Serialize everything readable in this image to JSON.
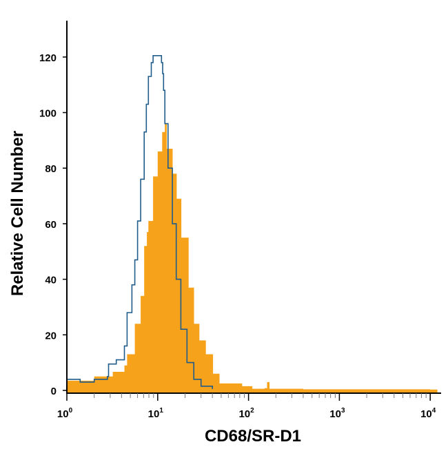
{
  "chart_data": {
    "type": "area",
    "title": "",
    "xlabel": "CD68/SR-D1",
    "ylabel": "Relative Cell Number",
    "x_scale": "log",
    "xlim": [
      1,
      13000
    ],
    "ylim": [
      0,
      133
    ],
    "grid": false,
    "x_ticks": [
      {
        "base": "10",
        "exp": "0",
        "value": 1
      },
      {
        "base": "10",
        "exp": "1",
        "value": 10
      },
      {
        "base": "10",
        "exp": "2",
        "value": 100
      },
      {
        "base": "10",
        "exp": "3",
        "value": 1000
      },
      {
        "base": "10",
        "exp": "4",
        "value": 10000
      }
    ],
    "y_ticks": [
      "0",
      "20",
      "40",
      "60",
      "80",
      "100",
      "120"
    ],
    "series": [
      {
        "style": "outline",
        "color": "#1F5C8A",
        "points": [
          [
            1,
            4
          ],
          [
            1.4,
            3
          ],
          [
            2,
            4
          ],
          [
            2.8,
            5
          ],
          [
            2.88,
            9.5
          ],
          [
            3.5,
            11
          ],
          [
            4.3,
            16
          ],
          [
            4.6,
            28
          ],
          [
            5.2,
            38
          ],
          [
            5.6,
            47
          ],
          [
            6.0,
            61
          ],
          [
            6.5,
            76
          ],
          [
            7.1,
            93
          ],
          [
            7.5,
            103
          ],
          [
            7.9,
            113
          ],
          [
            8.5,
            118
          ],
          [
            8.9,
            120.5
          ],
          [
            10,
            120.5
          ],
          [
            11,
            118
          ],
          [
            11.35,
            114
          ],
          [
            11.6,
            108
          ],
          [
            12,
            96
          ],
          [
            13,
            80
          ],
          [
            14.5,
            60
          ],
          [
            16,
            40
          ],
          [
            18,
            22
          ],
          [
            21,
            10
          ],
          [
            25,
            4
          ],
          [
            30,
            1.5
          ],
          [
            40,
            0.5
          ]
        ]
      },
      {
        "style": "filled",
        "color": "#F7A21B",
        "points": [
          [
            1,
            3.5
          ],
          [
            2,
            5
          ],
          [
            3.2,
            6.7
          ],
          [
            4.3,
            9
          ],
          [
            4.6,
            13
          ],
          [
            5.6,
            24
          ],
          [
            6.5,
            34
          ],
          [
            7.1,
            52
          ],
          [
            7.6,
            57
          ],
          [
            7.9,
            61
          ],
          [
            8.9,
            77
          ],
          [
            10,
            86
          ],
          [
            11.2,
            93
          ],
          [
            12,
            96
          ],
          [
            12.6,
            87
          ],
          [
            14.6,
            78
          ],
          [
            16.2,
            69
          ],
          [
            18.2,
            55
          ],
          [
            21.9,
            37
          ],
          [
            25.1,
            24
          ],
          [
            28.8,
            18
          ],
          [
            33.9,
            13
          ],
          [
            40.7,
            6
          ],
          [
            47.9,
            2.5
          ],
          [
            85,
            1.5
          ],
          [
            110,
            0.6
          ],
          [
            150,
            0.8
          ],
          [
            160,
            3
          ],
          [
            170,
            0.6
          ],
          [
            400,
            0.4
          ],
          [
            1000,
            0.4
          ],
          [
            10000,
            0.3
          ]
        ]
      }
    ]
  }
}
